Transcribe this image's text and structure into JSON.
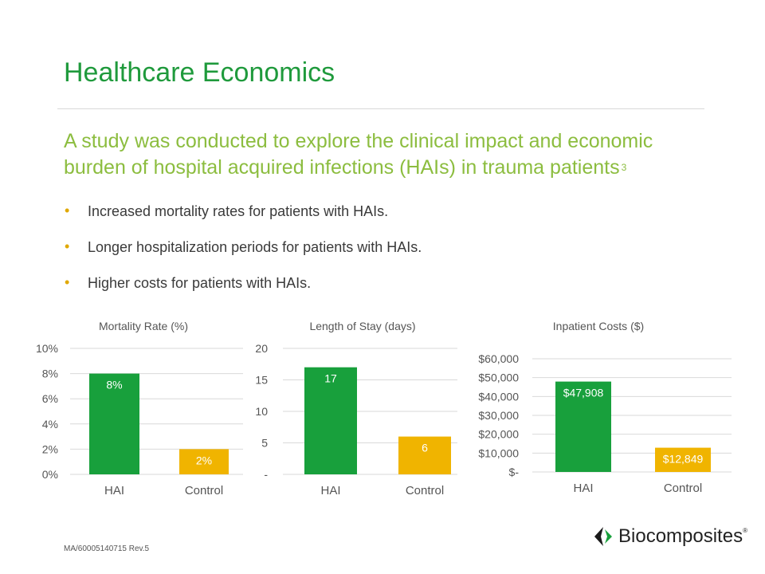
{
  "slide": {
    "title": "Healthcare Economics",
    "subtitle": "A study was conducted to explore the clinical impact and economic burden of hospital acquired infections (HAIs) in trauma patients",
    "subtitle_ref": "3",
    "bullets": [
      "Increased mortality rates for patients with HAIs.",
      "Longer hospitalization periods for patients with HAIs.",
      "Higher costs for patients with HAIs."
    ],
    "footer": "MA/60005140715 Rev.5",
    "logo_text": "Biocomposites",
    "logo_mark": "®"
  },
  "colors": {
    "title": "#1f9a3c",
    "subtitle": "#8cbd3f",
    "bullet": "#e0a800",
    "hai_bar": "#18a03c",
    "control_bar": "#f0b400",
    "gridline": "#d9d9d9"
  },
  "chart_data": [
    {
      "type": "bar",
      "title": "Mortality Rate (%)",
      "categories": [
        "HAI",
        "Control"
      ],
      "values": [
        8,
        2
      ],
      "data_labels": [
        "8%",
        "2%"
      ],
      "ylim": [
        0,
        10
      ],
      "yticks": [
        0,
        2,
        4,
        6,
        8,
        10
      ],
      "ytick_labels": [
        "0%",
        "2%",
        "4%",
        "6%",
        "8%",
        "10%"
      ],
      "grid": true,
      "xlabel": "",
      "ylabel": ""
    },
    {
      "type": "bar",
      "title": "Length of Stay (days)",
      "categories": [
        "HAI",
        "Control"
      ],
      "values": [
        17,
        6
      ],
      "data_labels": [
        "17",
        "6"
      ],
      "ylim": [
        0,
        20
      ],
      "yticks": [
        0,
        5,
        10,
        15,
        20
      ],
      "ytick_labels": [
        "-",
        "5",
        "10",
        "15",
        "20"
      ],
      "grid": true,
      "xlabel": "",
      "ylabel": ""
    },
    {
      "type": "bar",
      "title": "Inpatient Costs ($)",
      "categories": [
        "HAI",
        "Control"
      ],
      "values": [
        47908,
        12849
      ],
      "data_labels": [
        "$47,908",
        "$12,849"
      ],
      "ylim": [
        0,
        60000
      ],
      "yticks": [
        0,
        10000,
        20000,
        30000,
        40000,
        50000,
        60000
      ],
      "ytick_labels": [
        "$-",
        "$10,000",
        "$20,000",
        "$30,000",
        "$40,000",
        "$50,000",
        "$60,000"
      ],
      "grid": true,
      "xlabel": "",
      "ylabel": ""
    }
  ]
}
